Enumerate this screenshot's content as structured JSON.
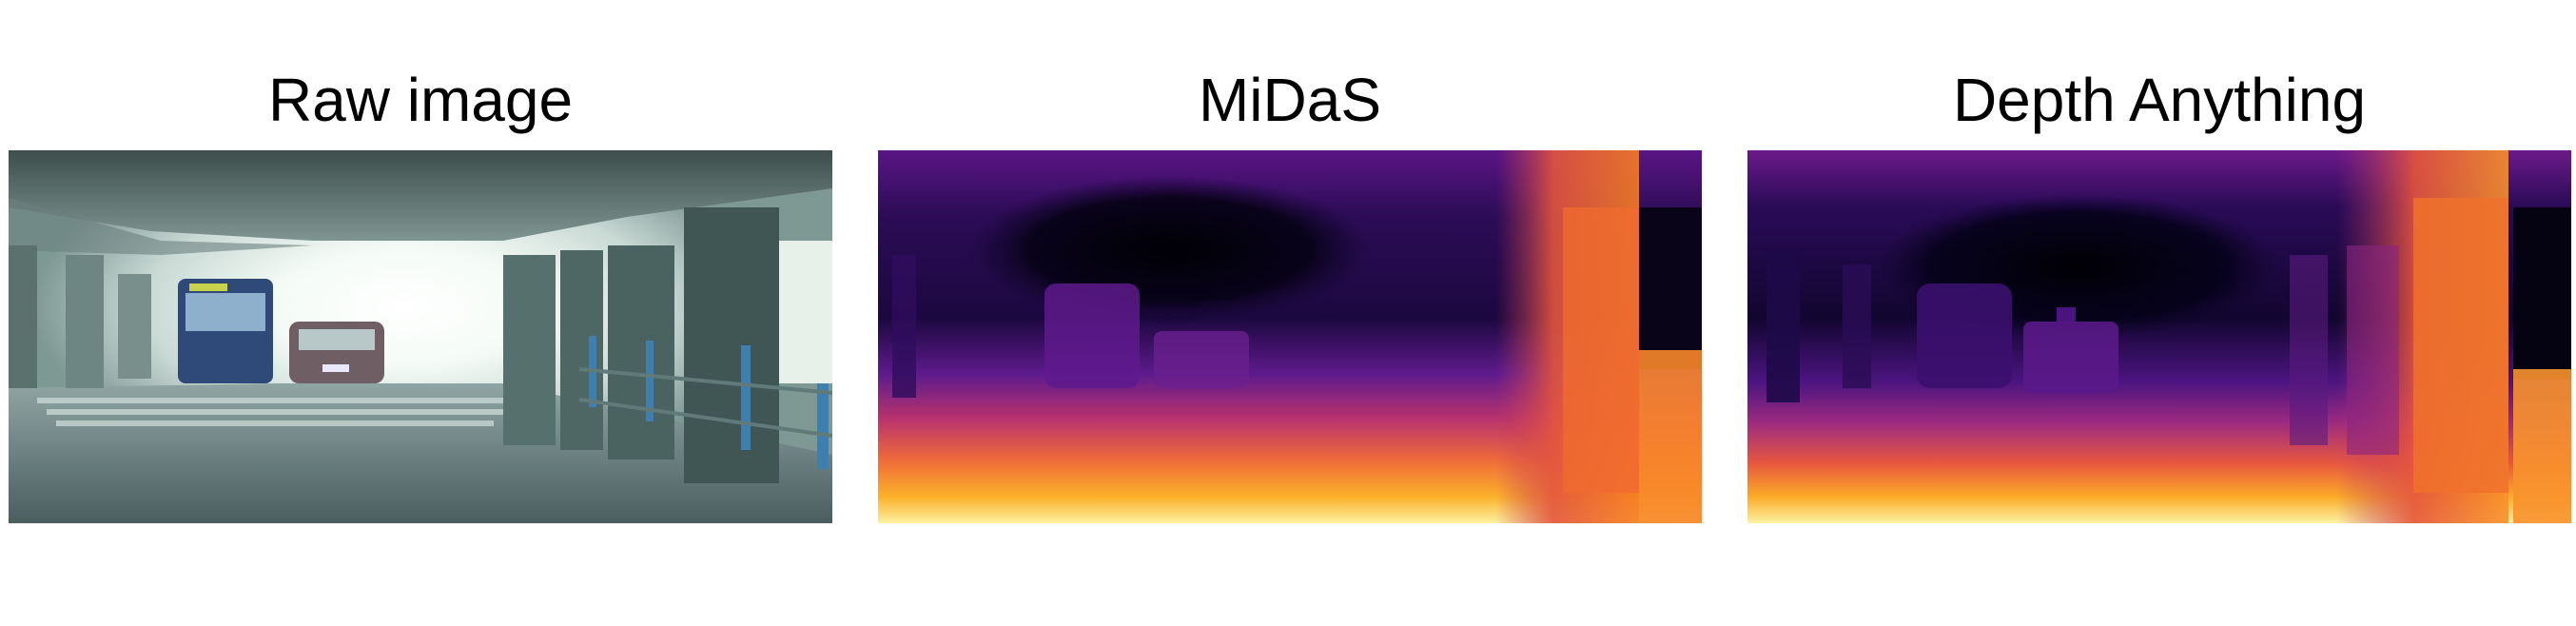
{
  "panels": [
    {
      "title": "Raw image"
    },
    {
      "title": "MiDaS"
    },
    {
      "title": "Depth Anything"
    }
  ],
  "colors": {
    "colormap": [
      "#000004",
      "#2c0b5a",
      "#6a1a8c",
      "#a8327f",
      "#dd5a4a",
      "#f78c1e",
      "#fbc12a",
      "#fcf4a0"
    ],
    "raw_tint": "#3e5454"
  }
}
